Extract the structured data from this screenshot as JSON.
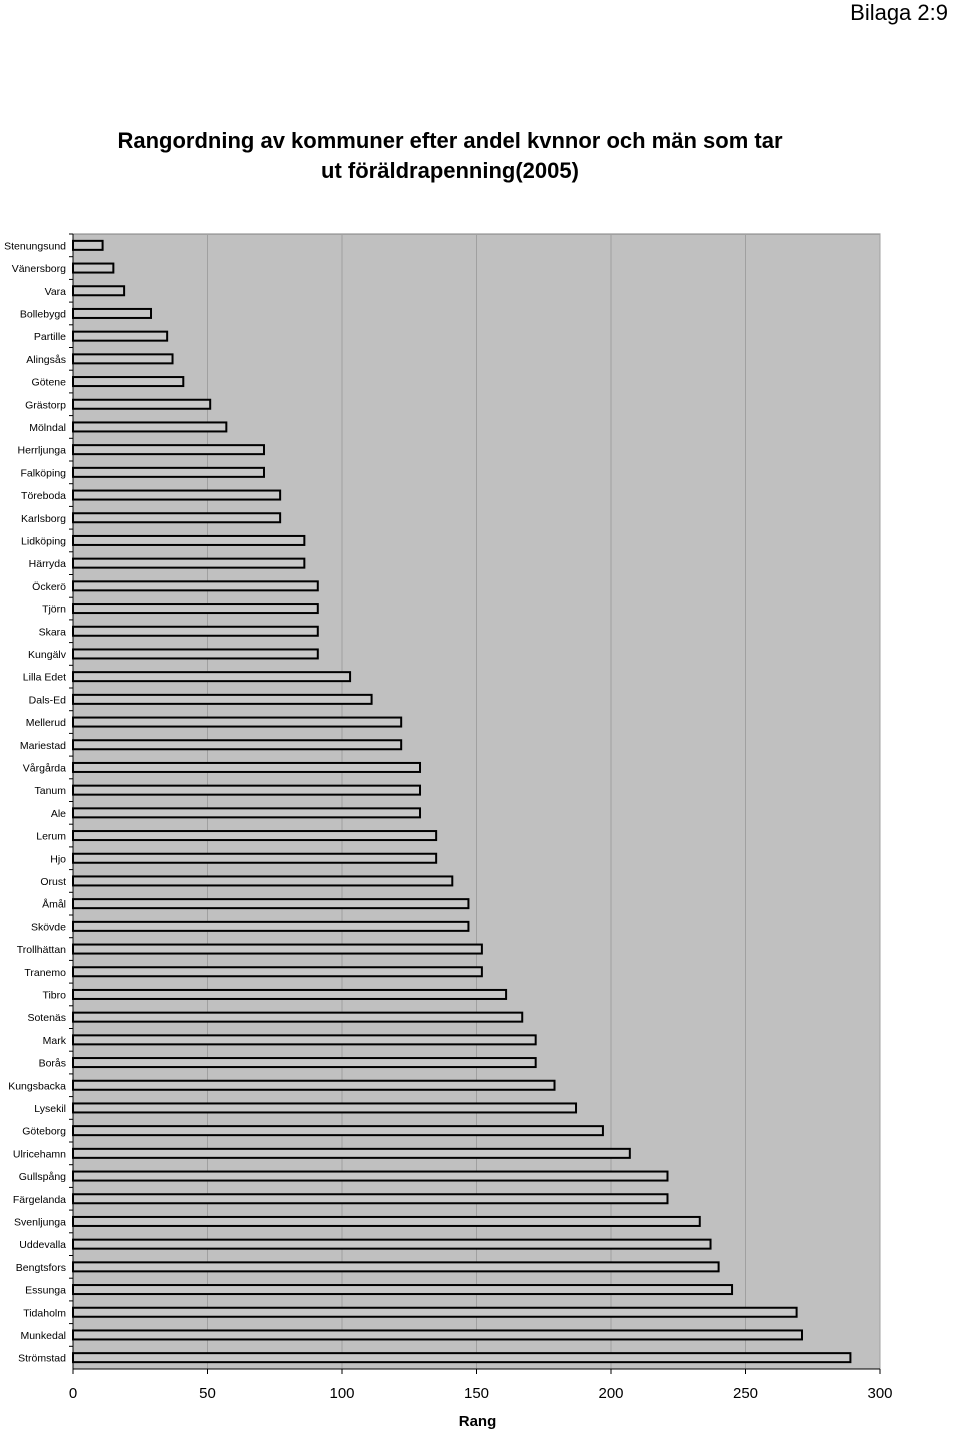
{
  "page_label": "Bilaga 2:9",
  "title_line1": "Rangordning av kommuner efter andel kvnnor och män som tar",
  "title_line2": "ut  föräldrapenning(2005)",
  "colors": {
    "plot_bg": "#c0c0c0",
    "bar_fill": "#c8c8c8",
    "bar_stroke": "#000000",
    "grid": "#a0a0a0"
  },
  "chart_data": {
    "type": "bar",
    "orientation": "horizontal",
    "title": "Rangordning av kommuner efter andel kvnnor och män som tar ut  föräldrapenning(2005)",
    "xlabel": "Rang",
    "ylabel": "",
    "xlim": [
      0,
      300
    ],
    "xticks": [
      0,
      50,
      100,
      150,
      200,
      250,
      300
    ],
    "grid": true,
    "categories": [
      "Stenungsund",
      "Vänersborg",
      "Vara",
      "Bollebygd",
      "Partille",
      "Alingsås",
      "Götene",
      "Grästorp",
      "Mölndal",
      "Herrljunga",
      "Falköping",
      "Töreboda",
      "Karlsborg",
      "Lidköping",
      "Härryda",
      "Öckerö",
      "Tjörn",
      "Skara",
      "Kungälv",
      "Lilla Edet",
      "Dals-Ed",
      "Mellerud",
      "Mariestad",
      "Vårgårda",
      "Tanum",
      "Ale",
      "Lerum",
      "Hjo",
      "Orust",
      "Åmål",
      "Skövde",
      "Trollhättan",
      "Tranemo",
      "Tibro",
      "Sotenäs",
      "Mark",
      "Borås",
      "Kungsbacka",
      "Lysekil",
      "Göteborg",
      "Ulricehamn",
      "Gullspång",
      "Färgelanda",
      "Svenljunga",
      "Uddevalla",
      "Bengtsfors",
      "Essunga",
      "Tidaholm",
      "Munkedal",
      "Strömstad"
    ],
    "values": [
      11,
      15,
      19,
      29,
      35,
      37,
      41,
      51,
      57,
      71,
      71,
      77,
      77,
      86,
      86,
      91,
      91,
      91,
      91,
      103,
      111,
      122,
      122,
      129,
      129,
      129,
      135,
      135,
      141,
      147,
      147,
      152,
      152,
      161,
      167,
      172,
      172,
      179,
      187,
      197,
      207,
      221,
      221,
      233,
      237,
      240,
      245,
      269,
      271,
      289
    ]
  }
}
